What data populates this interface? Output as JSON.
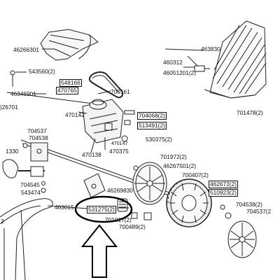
{
  "labels": {
    "l46266301": "46266301",
    "l463830": "463830",
    "l460312": "460312",
    "l46051201": "46051201(2)",
    "l543560": "543560(2)",
    "l548166": "548166",
    "l470765": "470765",
    "l700161": "700161",
    "l46346901": "46346901",
    "l26701": ")26701",
    "l470142": "470142",
    "l704068": "704068(2)",
    "l513491": "513491(2)",
    "l701478": "701478(2)",
    "l704537a": "704537",
    "l704538a": "704538",
    "l470147": "470147",
    "l530375": "530375(2)",
    "l470138": "470138",
    "l470375": "470375",
    "l1330": "1330",
    "l701972": "701972(2)",
    "l46267501": "46267501(2)",
    "l700407": "700407(2)",
    "l704545": "704545",
    "l543474": "543474",
    "l46269830": "46269830",
    "l462672": "462672(2)",
    "l510923": "510923(2)",
    "l463015": "463015",
    "l531275": "531275(2)",
    "l704538b": "704538(2)",
    "l704537b": "704537(2",
    "l701017": "701017(2)",
    "l700489": "700489(2)",
    "l2": "2"
  }
}
